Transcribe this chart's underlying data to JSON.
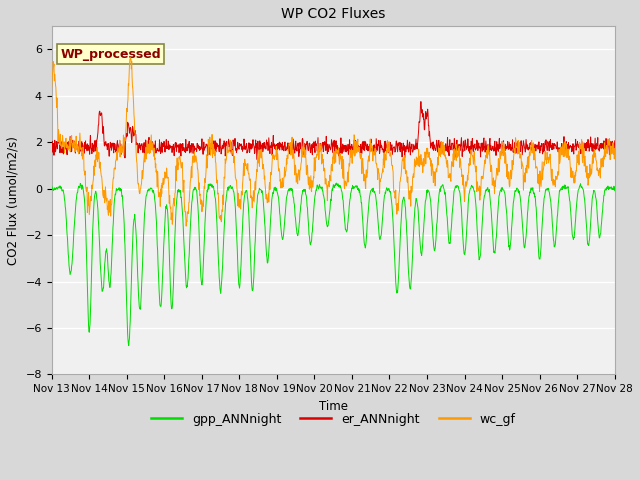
{
  "title": "WP CO2 Fluxes",
  "ylabel": "CO2 Flux (umol/m2/s)",
  "xlabel": "Time",
  "ylim": [
    -8,
    7
  ],
  "yticks": [
    -8,
    -6,
    -4,
    -2,
    0,
    2,
    4,
    6
  ],
  "outer_bg": "#d8d8d8",
  "plot_bg": "#f0f0f0",
  "annotation_text": "WP_processed",
  "annotation_color": "#8b0000",
  "annotation_bg": "#ffffcc",
  "line_colors": {
    "gpp": "#00dd00",
    "er": "#dd0000",
    "wc": "#ff9900"
  },
  "legend_labels": [
    "gpp_ANNnight",
    "er_ANNnight",
    "wc_gf"
  ],
  "n_points": 1500,
  "x_start": 13,
  "x_end": 28,
  "xtick_positions": [
    13,
    14,
    15,
    16,
    17,
    18,
    19,
    20,
    21,
    22,
    23,
    24,
    25,
    26,
    27,
    28
  ],
  "xtick_labels": [
    "Nov 13",
    "Nov 14",
    "Nov 15",
    "Nov 16",
    "Nov 17",
    "Nov 18",
    "Nov 19",
    "Nov 20",
    "Nov 21",
    "Nov 22",
    "Nov 23",
    "Nov 24",
    "Nov 25",
    "Nov 26",
    "Nov 27",
    "Nov 28"
  ]
}
